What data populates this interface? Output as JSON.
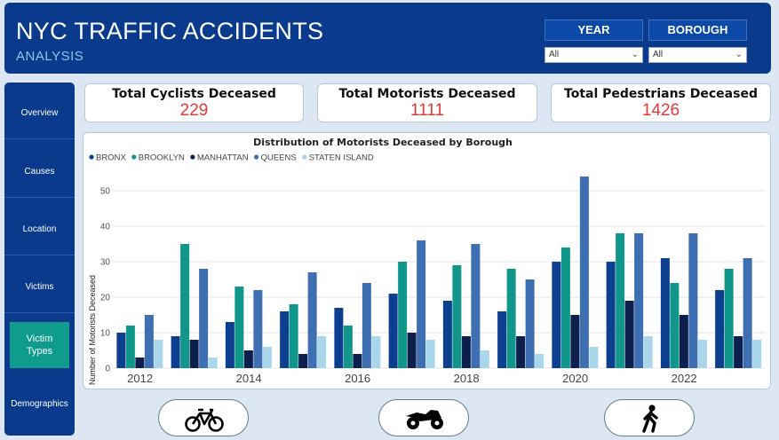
{
  "header": {
    "title": "NYC TRAFFIC ACCIDENTS",
    "subtitle": "ANALYSIS",
    "filters": [
      {
        "label": "YEAR",
        "value": "All"
      },
      {
        "label": "BOROUGH",
        "value": "All"
      }
    ]
  },
  "sidebar": {
    "items": [
      {
        "label": "Overview"
      },
      {
        "label": "Causes"
      },
      {
        "label": "Location"
      },
      {
        "label": "Victims"
      },
      {
        "label": "Victim Types",
        "active": true
      },
      {
        "label": "Demographics"
      }
    ]
  },
  "kpis": [
    {
      "label": "Total Cyclists Deceased",
      "value": "229"
    },
    {
      "label": "Total Motorists Deceased",
      "value": "1111"
    },
    {
      "label": "Total Pedestrians Deceased",
      "value": "1426"
    }
  ],
  "buttons": [
    {
      "icon": "bicycle-icon"
    },
    {
      "icon": "motorcycle-icon"
    },
    {
      "icon": "pedestrian-icon"
    }
  ],
  "colors": {
    "header_bg": "#0a3a8c",
    "accent_teal": "#0f9c8c",
    "kpi_value": "#e03a3a"
  },
  "chart_data": {
    "type": "bar",
    "title": "Distribution of Motorists Deceased by Borough",
    "xlabel": "",
    "ylabel": "Number of Motorists Deceased",
    "ylim": [
      0,
      56
    ],
    "yticks": [
      0,
      10,
      20,
      30,
      40,
      50
    ],
    "categories": [
      "2012",
      "2013",
      "2014",
      "2015",
      "2016",
      "2017",
      "2018",
      "2019",
      "2020",
      "2021",
      "2022",
      "2023"
    ],
    "xtick_labels": [
      "2012",
      "",
      "2014",
      "",
      "2016",
      "",
      "2018",
      "",
      "2020",
      "",
      "2022",
      ""
    ],
    "legend_position": "top-left",
    "grid": true,
    "series": [
      {
        "name": "BRONX",
        "color": "#0d3f91",
        "values": [
          10,
          9,
          13,
          16,
          17,
          21,
          19,
          16,
          30,
          30,
          31,
          22
        ]
      },
      {
        "name": "BROOKLYN",
        "color": "#10968a",
        "values": [
          12,
          35,
          23,
          18,
          12,
          30,
          29,
          28,
          34,
          38,
          24,
          28
        ]
      },
      {
        "name": "MANHATTAN",
        "color": "#0c1f4d",
        "values": [
          3,
          8,
          5,
          4,
          4,
          10,
          9,
          9,
          15,
          19,
          15,
          9
        ]
      },
      {
        "name": "QUEENS",
        "color": "#3f6fb3",
        "values": [
          15,
          28,
          22,
          27,
          24,
          36,
          35,
          25,
          54,
          38,
          38,
          31
        ]
      },
      {
        "name": "STATEN ISLAND",
        "color": "#a9d6eb",
        "values": [
          8,
          3,
          6,
          9,
          9,
          8,
          5,
          4,
          6,
          9,
          8,
          8
        ]
      }
    ]
  }
}
